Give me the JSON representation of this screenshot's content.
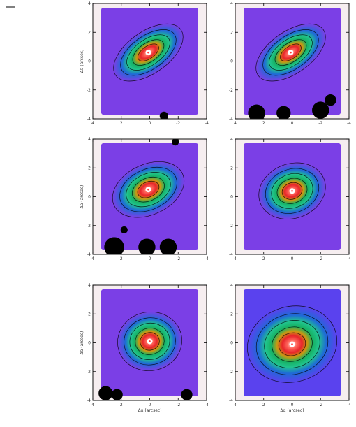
{
  "figure": {
    "background": "#ffffff",
    "frame_color": "#111111",
    "corner_mark": "—"
  },
  "chart_data": [
    {
      "type": "heatmap",
      "row": 0,
      "col": 0,
      "xlabel": "",
      "ylabel": "Δδ (arcsec)",
      "xlim": [
        4,
        -4
      ],
      "ylim": [
        -4,
        4
      ],
      "xticks": [
        "4",
        "2",
        "0",
        "-2",
        "-4"
      ],
      "yticks": [
        "4",
        "2",
        "0",
        "-2",
        "-4"
      ],
      "peak": {
        "x": 0.1,
        "y": 0.6
      },
      "tilt_deg": 35,
      "elong": 1.9,
      "halo": 1.0,
      "blanks": [
        {
          "x": -1.0,
          "y": -3.8,
          "r": 0.3
        }
      ],
      "colors": {
        "background": "#7b3fe6",
        "mid": "#21c48e",
        "core": "#e8242a",
        "peak": "#ffffff"
      }
    },
    {
      "type": "heatmap",
      "row": 0,
      "col": 1,
      "xlabel": "",
      "ylabel": "",
      "xlim": [
        4,
        -4
      ],
      "ylim": [
        -4,
        4
      ],
      "xticks": [
        "4",
        "2",
        "0",
        "-2",
        "-4"
      ],
      "yticks": [
        "4",
        "2",
        "0",
        "-2",
        "-4"
      ],
      "peak": {
        "x": 0.1,
        "y": 0.6
      },
      "tilt_deg": 35,
      "elong": 1.9,
      "halo": 1.0,
      "blanks": [
        {
          "x": 2.5,
          "y": -3.6,
          "r": 0.6
        },
        {
          "x": 0.6,
          "y": -3.6,
          "r": 0.5
        },
        {
          "x": -2.0,
          "y": -3.4,
          "r": 0.6
        },
        {
          "x": -2.7,
          "y": -2.7,
          "r": 0.4
        }
      ],
      "colors": {
        "background": "#7b3fe6",
        "mid": "#21c48e",
        "core": "#e8242a",
        "peak": "#ffffff"
      }
    },
    {
      "type": "heatmap",
      "row": 1,
      "col": 0,
      "xlabel": "",
      "ylabel": "Δδ (arcsec)",
      "xlim": [
        4,
        -4
      ],
      "ylim": [
        -4,
        4
      ],
      "xticks": [
        "4",
        "2",
        "0",
        "-2",
        "-4"
      ],
      "yticks": [
        "4",
        "2",
        "0",
        "-2",
        "-4"
      ],
      "peak": {
        "x": 0.1,
        "y": 0.5
      },
      "tilt_deg": 25,
      "elong": 1.5,
      "halo": 1.2,
      "blanks": [
        {
          "x": 2.5,
          "y": -3.5,
          "r": 0.7
        },
        {
          "x": 0.2,
          "y": -3.5,
          "r": 0.6
        },
        {
          "x": -1.3,
          "y": -3.5,
          "r": 0.6
        },
        {
          "x": 1.8,
          "y": -2.3,
          "r": 0.25
        },
        {
          "x": -1.8,
          "y": 3.8,
          "r": 0.25
        }
      ],
      "colors": {
        "background": "#7b3fe6",
        "mid": "#21c48e",
        "core": "#e8242a",
        "peak": "#ffffff"
      }
    },
    {
      "type": "heatmap",
      "row": 1,
      "col": 1,
      "xlabel": "",
      "ylabel": "",
      "xlim": [
        4,
        -4
      ],
      "ylim": [
        -4,
        4
      ],
      "xticks": [
        "4",
        "2",
        "0",
        "-2",
        "-4"
      ],
      "yticks": [
        "4",
        "2",
        "0",
        "-2",
        "-4"
      ],
      "peak": {
        "x": 0.0,
        "y": 0.4
      },
      "tilt_deg": 20,
      "elong": 1.25,
      "halo": 1.3,
      "blanks": [],
      "colors": {
        "background": "#7b3fe6",
        "mid": "#21c48e",
        "core": "#e8242a",
        "peak": "#ffffff"
      }
    },
    {
      "type": "heatmap",
      "row": 2,
      "col": 0,
      "xlabel": "Δα (arcsec)",
      "ylabel": "Δδ (arcsec)",
      "xlim": [
        4,
        -4
      ],
      "ylim": [
        -4,
        4
      ],
      "xticks": [
        "4",
        "2",
        "0",
        "-2",
        "-4"
      ],
      "yticks": [
        "4",
        "2",
        "0",
        "-2",
        "-4"
      ],
      "peak": {
        "x": 0.0,
        "y": 0.1
      },
      "tilt_deg": 10,
      "elong": 1.1,
      "halo": 1.4,
      "blanks": [
        {
          "x": 3.1,
          "y": -3.5,
          "r": 0.5
        },
        {
          "x": 2.3,
          "y": -3.6,
          "r": 0.4
        },
        {
          "x": -2.6,
          "y": -3.6,
          "r": 0.4
        }
      ],
      "colors": {
        "background": "#7b3fe6",
        "mid": "#21c48e",
        "core": "#e8242a",
        "peak": "#ffffff"
      }
    },
    {
      "type": "heatmap",
      "row": 2,
      "col": 1,
      "xlabel": "Δα (arcsec)",
      "ylabel": "",
      "xlim": [
        4,
        -4
      ],
      "ylim": [
        -4,
        4
      ],
      "xticks": [
        "4",
        "2",
        "0",
        "-2",
        "-4"
      ],
      "yticks": [
        "4",
        "2",
        "0",
        "-2",
        "-4"
      ],
      "peak": {
        "x": 0.0,
        "y": -0.1
      },
      "tilt_deg": 15,
      "elong": 1.2,
      "halo": 1.8,
      "blanks": [],
      "colors": {
        "background": "#5a42ee",
        "mid": "#21c48e",
        "core": "#e8242a",
        "peak": "#ffffff"
      }
    }
  ]
}
